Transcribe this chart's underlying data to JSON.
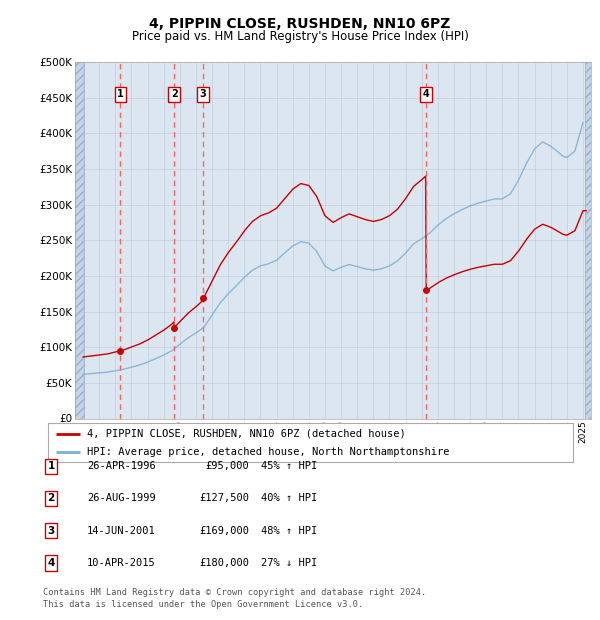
{
  "title": "4, PIPPIN CLOSE, RUSHDEN, NN10 6PZ",
  "subtitle": "Price paid vs. HM Land Registry's House Price Index (HPI)",
  "legend_label_red": "4, PIPPIN CLOSE, RUSHDEN, NN10 6PZ (detached house)",
  "legend_label_blue": "HPI: Average price, detached house, North Northamptonshire",
  "footer": "Contains HM Land Registry data © Crown copyright and database right 2024.\nThis data is licensed under the Open Government Licence v3.0.",
  "transactions": [
    {
      "num": 1,
      "date": "26-APR-1996",
      "price": 95000,
      "pct": "45%",
      "dir": "↑",
      "year": 1996.32
    },
    {
      "num": 2,
      "date": "26-AUG-1999",
      "price": 127500,
      "pct": "40%",
      "dir": "↑",
      "year": 1999.65
    },
    {
      "num": 3,
      "date": "14-JUN-2001",
      "price": 169000,
      "pct": "48%",
      "dir": "↑",
      "year": 2001.45
    },
    {
      "num": 4,
      "date": "10-APR-2015",
      "price": 180000,
      "pct": "27%",
      "dir": "↓",
      "year": 2015.27
    }
  ],
  "ylim": [
    0,
    500000
  ],
  "yticks": [
    0,
    50000,
    100000,
    150000,
    200000,
    250000,
    300000,
    350000,
    400000,
    450000,
    500000
  ],
  "xlim": [
    1993.5,
    2025.5
  ],
  "background_color": "#ffffff",
  "chart_bg": "#dce6f0",
  "hatch_bg": "#c5d5e8",
  "grid_color": "#b0c4d8",
  "red_color": "#cc0000",
  "blue_color": "#7ab0d4",
  "vline_color": "#ff6666",
  "note_color": "#555555"
}
